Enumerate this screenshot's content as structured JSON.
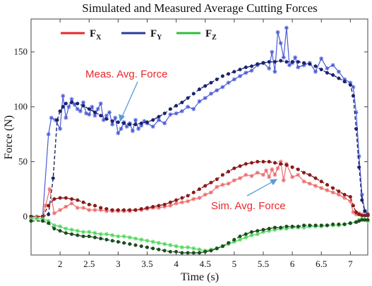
{
  "chart_data": {
    "type": "line",
    "title": "Simulated and Measured Average Cutting Forces",
    "xlabel": "Time (s)",
    "ylabel": "Force (N)",
    "xlim": [
      1.5,
      7.3
    ],
    "ylim": [
      -35,
      180
    ],
    "xticks": [
      2,
      2.5,
      3,
      3.5,
      4,
      4.5,
      5,
      5.5,
      6,
      6.5,
      7
    ],
    "xtick_labels": [
      "2",
      "2.5",
      "3",
      "3.5",
      "4",
      "4.5",
      "5",
      "5.5",
      "6",
      "6.5",
      "7"
    ],
    "yticks": [
      0,
      50,
      100,
      150
    ],
    "ytick_labels": [
      "0",
      "50",
      "100",
      "150"
    ],
    "grid": false,
    "legend": {
      "placement": "top-left",
      "entries": [
        {
          "main": "F",
          "sub": "X",
          "color": "#e8282b"
        },
        {
          "main": "F",
          "sub": "Y",
          "color": "#2b3a9a"
        },
        {
          "main": "F",
          "sub": "Z",
          "color": "#2fbf3a"
        }
      ]
    },
    "annotations": [
      {
        "text": "Meas. Avg. Force",
        "color": "#e8282b",
        "points_to": [
          3.0,
          87
        ]
      },
      {
        "text": "Sim. Avg. Force",
        "color": "#e8282b",
        "points_to": [
          5.9,
          34
        ]
      }
    ],
    "series": [
      {
        "axis": "Y",
        "kind": "measured",
        "color": "#4a5bd6",
        "x": [
          1.5,
          1.6,
          1.7,
          1.8,
          1.85,
          1.92,
          2.0,
          2.05,
          2.1,
          2.15,
          2.2,
          2.25,
          2.3,
          2.35,
          2.4,
          2.45,
          2.5,
          2.55,
          2.6,
          2.65,
          2.7,
          2.75,
          2.8,
          2.85,
          2.9,
          2.95,
          3.0,
          3.05,
          3.1,
          3.15,
          3.2,
          3.25,
          3.3,
          3.35,
          3.4,
          3.45,
          3.5,
          3.6,
          3.7,
          3.8,
          3.9,
          4.0,
          4.1,
          4.2,
          4.3,
          4.4,
          4.5,
          4.6,
          4.7,
          4.8,
          4.9,
          5.0,
          5.1,
          5.2,
          5.3,
          5.4,
          5.5,
          5.6,
          5.65,
          5.7,
          5.75,
          5.8,
          5.85,
          5.9,
          5.95,
          6.0,
          6.05,
          6.1,
          6.2,
          6.3,
          6.4,
          6.5,
          6.6,
          6.7,
          6.8,
          6.9,
          7.0,
          7.05,
          7.1,
          7.15,
          7.2,
          7.25,
          7.3
        ],
        "y": [
          0,
          0,
          0,
          75,
          90,
          88,
          80,
          110,
          90,
          100,
          107,
          102,
          98,
          96,
          104,
          94,
          93,
          100,
          92,
          98,
          103,
          88,
          92,
          95,
          84,
          90,
          76,
          80,
          86,
          82,
          85,
          78,
          88,
          80,
          83,
          87,
          85,
          82,
          88,
          85,
          93,
          94,
          96,
          100,
          98,
          105,
          108,
          112,
          115,
          118,
          122,
          125,
          128,
          131,
          133,
          138,
          140,
          135,
          150,
          132,
          168,
          158,
          145,
          172,
          138,
          140,
          145,
          136,
          138,
          140,
          132,
          144,
          135,
          138,
          132,
          125,
          122,
          118,
          95,
          55,
          20,
          5,
          2
        ]
      },
      {
        "axis": "Y",
        "kind": "simulated",
        "color": "#1a226e",
        "x": [
          1.5,
          1.7,
          1.8,
          1.88,
          1.95,
          2.0,
          2.05,
          2.1,
          2.2,
          2.3,
          2.4,
          2.5,
          2.6,
          2.7,
          2.8,
          2.9,
          3.0,
          3.1,
          3.2,
          3.3,
          3.4,
          3.5,
          3.6,
          3.7,
          3.8,
          3.9,
          4.0,
          4.1,
          4.2,
          4.3,
          4.4,
          4.5,
          4.6,
          4.7,
          4.8,
          4.9,
          5.0,
          5.1,
          5.2,
          5.3,
          5.4,
          5.5,
          5.6,
          5.7,
          5.8,
          5.9,
          6.0,
          6.1,
          6.2,
          6.3,
          6.4,
          6.5,
          6.6,
          6.7,
          6.8,
          6.9,
          7.0,
          7.05,
          7.1,
          7.15,
          7.2,
          7.25,
          7.3
        ],
        "y": [
          0,
          0,
          2,
          35,
          88,
          96,
          100,
          103,
          104,
          103,
          101,
          98,
          95,
          92,
          89,
          87,
          86,
          85,
          84,
          84,
          85,
          86,
          88,
          91,
          94,
          98,
          101,
          104,
          108,
          112,
          116,
          119,
          122,
          125,
          128,
          130,
          132,
          134,
          136,
          137,
          139,
          140,
          141,
          141,
          142,
          141,
          141,
          141,
          140,
          139,
          137,
          134,
          131,
          129,
          126,
          123,
          120,
          110,
          80,
          45,
          15,
          5,
          2
        ]
      },
      {
        "axis": "X",
        "kind": "measured",
        "color": "#ee6a6a",
        "x": [
          1.5,
          1.6,
          1.7,
          1.75,
          1.82,
          1.9,
          2.0,
          2.1,
          2.2,
          2.3,
          2.4,
          2.5,
          2.6,
          2.7,
          2.8,
          2.9,
          3.0,
          3.1,
          3.2,
          3.3,
          3.4,
          3.5,
          3.6,
          3.7,
          3.8,
          3.9,
          4.0,
          4.1,
          4.2,
          4.3,
          4.4,
          4.5,
          4.6,
          4.7,
          4.8,
          4.9,
          5.0,
          5.1,
          5.2,
          5.3,
          5.4,
          5.5,
          5.55,
          5.6,
          5.65,
          5.7,
          5.75,
          5.8,
          5.85,
          5.9,
          6.0,
          6.1,
          6.2,
          6.3,
          6.4,
          6.5,
          6.6,
          6.7,
          6.8,
          6.9,
          7.0,
          7.05,
          7.1,
          7.15,
          7.2,
          7.25,
          7.3
        ],
        "y": [
          0,
          0,
          0,
          10,
          25,
          3,
          6,
          9,
          12,
          8,
          8,
          6,
          6,
          6,
          5,
          5,
          5,
          5,
          5,
          6,
          6,
          7,
          8,
          8,
          9,
          10,
          12,
          13,
          14,
          16,
          17,
          20,
          22,
          27,
          29,
          30,
          33,
          35,
          38,
          37,
          40,
          38,
          42,
          36,
          43,
          38,
          44,
          50,
          33,
          48,
          36,
          38,
          32,
          30,
          28,
          26,
          24,
          22,
          20,
          17,
          14,
          4,
          2,
          3,
          2,
          1,
          1
        ]
      },
      {
        "axis": "X",
        "kind": "simulated",
        "color": "#8a1a1a",
        "x": [
          1.5,
          1.7,
          1.8,
          1.9,
          2.0,
          2.1,
          2.2,
          2.3,
          2.4,
          2.5,
          2.6,
          2.7,
          2.8,
          2.9,
          3.0,
          3.1,
          3.2,
          3.3,
          3.4,
          3.5,
          3.6,
          3.7,
          3.8,
          3.9,
          4.0,
          4.1,
          4.2,
          4.3,
          4.4,
          4.5,
          4.6,
          4.7,
          4.8,
          4.9,
          5.0,
          5.1,
          5.2,
          5.3,
          5.4,
          5.5,
          5.6,
          5.7,
          5.8,
          5.9,
          6.0,
          6.1,
          6.2,
          6.3,
          6.4,
          6.5,
          6.6,
          6.7,
          6.8,
          6.9,
          7.0,
          7.05,
          7.1,
          7.15,
          7.2,
          7.25,
          7.3
        ],
        "y": [
          0,
          0,
          10,
          16,
          17,
          17,
          16,
          15,
          13,
          11,
          10,
          8,
          7,
          6,
          6,
          6,
          6,
          6,
          7,
          8,
          9,
          10,
          11,
          13,
          15,
          17,
          19,
          22,
          25,
          28,
          31,
          34,
          38,
          41,
          44,
          46,
          48,
          49,
          50,
          50,
          50,
          49,
          48,
          47,
          45,
          43,
          40,
          38,
          35,
          32,
          29,
          26,
          23,
          20,
          18,
          10,
          4,
          2,
          1,
          1,
          1
        ]
      },
      {
        "axis": "Z",
        "kind": "measured",
        "color": "#4fd65b",
        "x": [
          1.5,
          1.6,
          1.7,
          1.8,
          1.9,
          2.0,
          2.1,
          2.2,
          2.3,
          2.4,
          2.5,
          2.6,
          2.7,
          2.8,
          2.9,
          3.0,
          3.1,
          3.2,
          3.3,
          3.4,
          3.5,
          3.6,
          3.7,
          3.8,
          3.9,
          4.0,
          4.1,
          4.2,
          4.3,
          4.4,
          4.5,
          4.6,
          4.7,
          4.8,
          4.9,
          5.0,
          5.1,
          5.2,
          5.3,
          5.4,
          5.5,
          5.6,
          5.7,
          5.8,
          5.9,
          6.0,
          6.1,
          6.2,
          6.3,
          6.4,
          6.5,
          6.6,
          6.7,
          6.8,
          6.9,
          7.0,
          7.1,
          7.15,
          7.2,
          7.25,
          7.3
        ],
        "y": [
          -2,
          -2,
          -2,
          -4,
          -8,
          -9,
          -11,
          -12,
          -13,
          -14,
          -14,
          -15,
          -16,
          -16,
          -17,
          -18,
          -18,
          -19,
          -20,
          -21,
          -22,
          -23,
          -24,
          -25,
          -26,
          -27,
          -28,
          -28,
          -29,
          -30,
          -31,
          -30,
          -29,
          -27,
          -25,
          -23,
          -21,
          -19,
          -17,
          -16,
          -14,
          -13,
          -12,
          -11,
          -11,
          -10,
          -10,
          -10,
          -9,
          -9,
          -9,
          -8,
          -8,
          -8,
          -7,
          -6,
          -5,
          -3,
          -2,
          -3,
          -4
        ]
      },
      {
        "axis": "Z",
        "kind": "simulated",
        "color": "#1f4a22",
        "x": [
          1.5,
          1.7,
          1.8,
          1.9,
          2.0,
          2.1,
          2.2,
          2.3,
          2.4,
          2.5,
          2.6,
          2.7,
          2.8,
          2.9,
          3.0,
          3.1,
          3.2,
          3.3,
          3.4,
          3.5,
          3.6,
          3.7,
          3.8,
          3.9,
          4.0,
          4.1,
          4.2,
          4.3,
          4.4,
          4.5,
          4.6,
          4.7,
          4.8,
          4.9,
          5.0,
          5.1,
          5.2,
          5.3,
          5.4,
          5.5,
          5.6,
          5.7,
          5.8,
          5.9,
          6.0,
          6.1,
          6.2,
          6.3,
          6.4,
          6.5,
          6.6,
          6.7,
          6.8,
          6.9,
          7.0,
          7.1,
          7.15,
          7.2,
          7.25,
          7.3
        ],
        "y": [
          -4,
          -4,
          -6,
          -11,
          -13,
          -15,
          -16,
          -17,
          -18,
          -18,
          -19,
          -20,
          -21,
          -22,
          -23,
          -24,
          -25,
          -26,
          -27,
          -28,
          -29,
          -30,
          -31,
          -32,
          -32,
          -33,
          -33,
          -33,
          -33,
          -32,
          -31,
          -29,
          -27,
          -24,
          -21,
          -18,
          -16,
          -14,
          -13,
          -12,
          -11,
          -10,
          -10,
          -9,
          -9,
          -9,
          -8,
          -8,
          -8,
          -8,
          -8,
          -7,
          -7,
          -7,
          -6,
          -5,
          -4,
          -3,
          -3,
          -3
        ]
      }
    ]
  }
}
